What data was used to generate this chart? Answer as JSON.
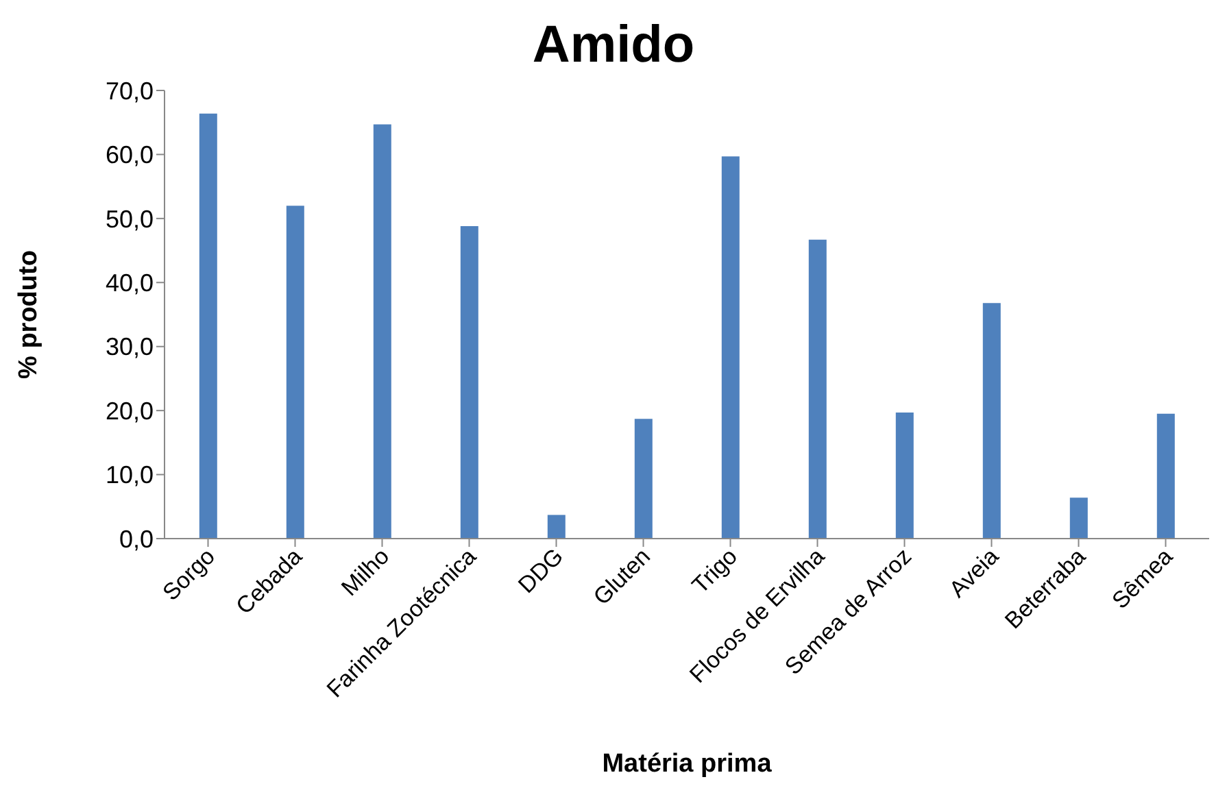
{
  "chart_data": {
    "type": "bar",
    "title": "Amido",
    "xlabel": "Matéria prima",
    "ylabel": "% produto",
    "categories": [
      "Sorgo",
      "Cebada",
      "Milho",
      "Farinha Zootécnica",
      "DDG",
      "Gluten",
      "Trigo",
      "Flocos de Ervilha",
      "Semea de Arroz",
      "Aveia",
      "Beterraba",
      "Sêmea"
    ],
    "values": [
      66.4,
      52.0,
      64.7,
      48.8,
      3.7,
      18.7,
      59.7,
      46.7,
      19.7,
      36.8,
      6.4,
      19.5
    ],
    "color": "#4f81bd",
    "ylim": [
      0,
      70
    ],
    "yticks": [
      {
        "value": 0,
        "label": "0,0"
      },
      {
        "value": 10,
        "label": "10,0"
      },
      {
        "value": 20,
        "label": "20,0"
      },
      {
        "value": 30,
        "label": "30,0"
      },
      {
        "value": 40,
        "label": "40,0"
      },
      {
        "value": 50,
        "label": "50,0"
      },
      {
        "value": 60,
        "label": "60,0"
      },
      {
        "value": 70,
        "label": "70,0"
      }
    ],
    "grid": false,
    "legend": false
  }
}
